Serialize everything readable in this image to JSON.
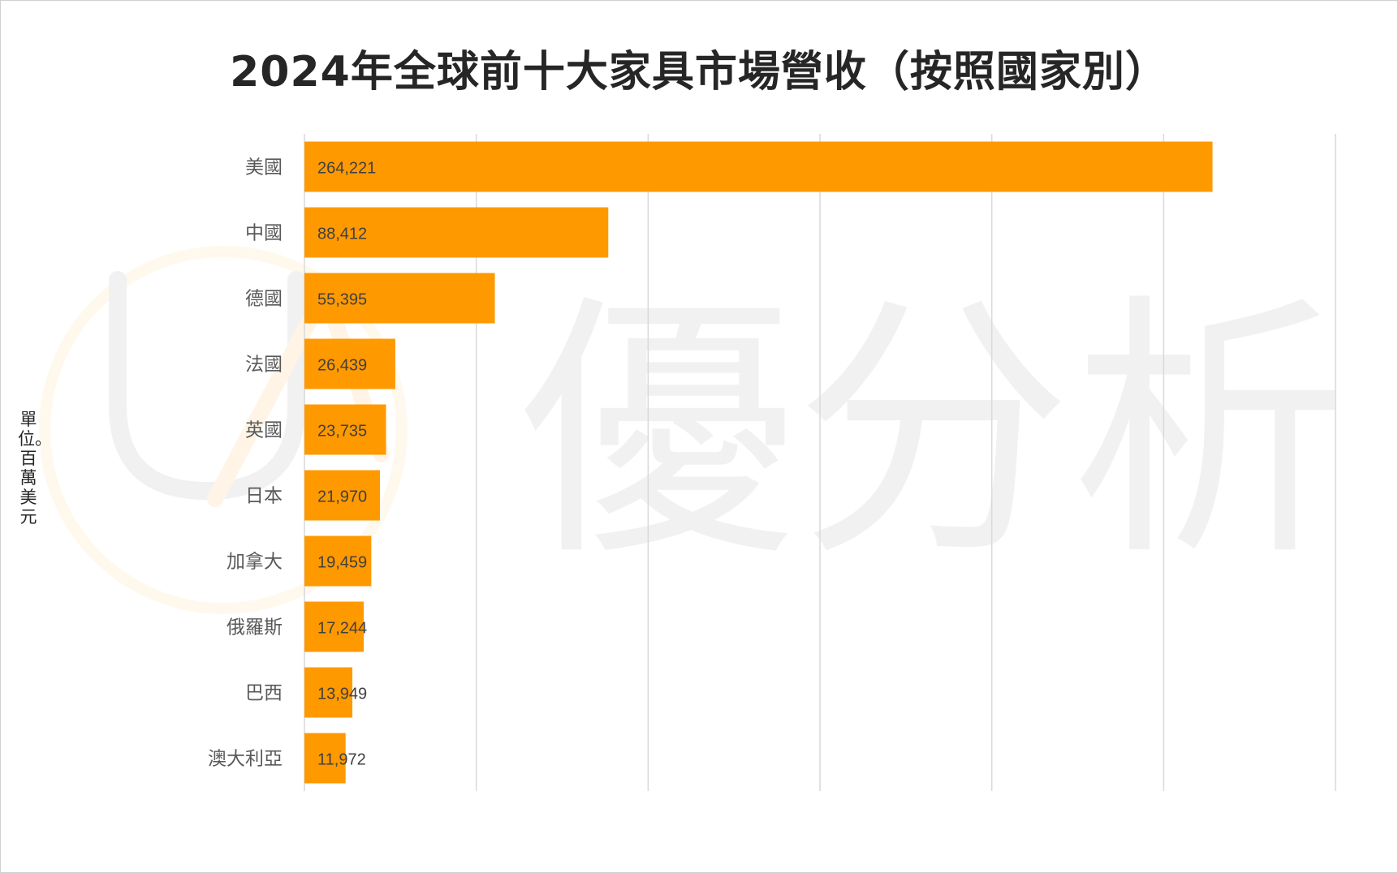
{
  "chart_data": {
    "type": "bar",
    "orientation": "horizontal",
    "title": "2024年全球前十大家具市場營收（按照國家別）",
    "unit_label": "單位。百萬美元",
    "categories": [
      "美國",
      "中國",
      "德國",
      "法國",
      "英國",
      "日本",
      "加拿大",
      "俄羅斯",
      "巴西",
      "澳大利亞"
    ],
    "values": [
      264221,
      88412,
      55395,
      26439,
      23735,
      21970,
      19459,
      17244,
      13949,
      11972
    ],
    "value_labels": [
      "264,221",
      "88,412",
      "55,395",
      "26,439",
      "23,735",
      "21,970",
      "19,459",
      "17,244",
      "13,949",
      "11,972"
    ],
    "xlim": [
      0,
      300000
    ],
    "x_gridlines": [
      0,
      50000,
      100000,
      150000,
      200000,
      250000,
      300000
    ],
    "grid": true,
    "bar_color": "#FF9900",
    "watermark": "優分析"
  }
}
